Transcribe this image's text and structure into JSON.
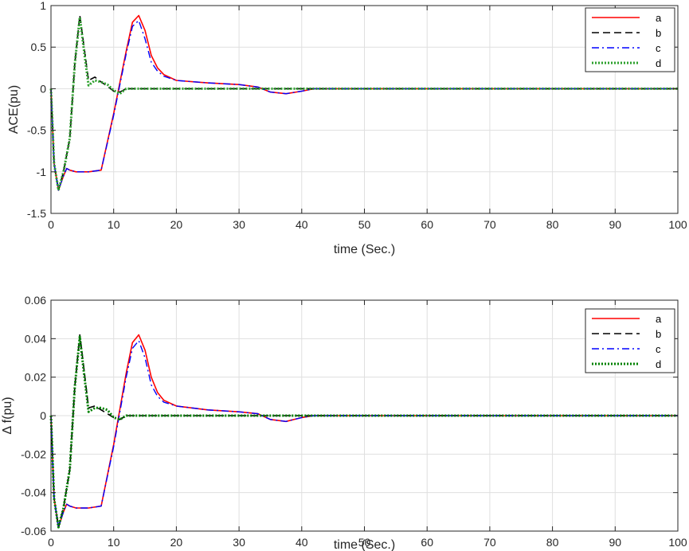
{
  "chart_data": [
    {
      "type": "line",
      "xlabel": "time (Sec.)",
      "ylabel": "ACE(pu)",
      "xlim": [
        0,
        100
      ],
      "ylim": [
        -1.5,
        1
      ],
      "xticks": [
        0,
        10,
        20,
        30,
        40,
        50,
        60,
        70,
        80,
        90,
        100
      ],
      "xtick_labels": [
        "0",
        "10",
        "20",
        "30",
        "40",
        "50",
        "60",
        "70",
        "80",
        "90",
        "100"
      ],
      "yticks": [
        -1.5,
        -1,
        -0.5,
        0,
        0.5,
        1
      ],
      "ytick_labels": [
        "-1.5",
        "-1",
        "-0.5",
        "0",
        "0.5",
        "1"
      ],
      "grid": true,
      "legend_position": "top-right",
      "series": [
        {
          "name": "a",
          "color": "#ff0000",
          "dash": "solid",
          "x": [
            0,
            0.5,
            1.2,
            2,
            2.5,
            3,
            4,
            6,
            8,
            10,
            12,
            13,
            14,
            15,
            16,
            17,
            18,
            20,
            25,
            30,
            33,
            35,
            37.5,
            40,
            42,
            100
          ],
          "y": [
            0,
            -0.9,
            -1.22,
            -1.05,
            -0.96,
            -0.98,
            -1.0,
            -1.0,
            -0.98,
            -0.3,
            0.45,
            0.8,
            0.88,
            0.7,
            0.4,
            0.25,
            0.17,
            0.1,
            0.07,
            0.05,
            0.02,
            -0.04,
            -0.06,
            -0.03,
            0,
            0
          ]
        },
        {
          "name": "b",
          "color": "#000000",
          "dash": "dashed",
          "x": [
            0,
            0.5,
            1.2,
            2,
            3,
            3.8,
            4.6,
            5.2,
            6,
            7,
            8,
            9,
            10,
            11,
            12,
            15,
            100
          ],
          "y": [
            0,
            -0.9,
            -1.22,
            -1.0,
            -0.6,
            0.3,
            0.88,
            0.55,
            0.1,
            0.14,
            0.08,
            0.03,
            -0.03,
            -0.04,
            0,
            0,
            0
          ]
        },
        {
          "name": "c",
          "color": "#0000ff",
          "dash": "dashdot",
          "x": [
            0,
            0.5,
            1.2,
            2,
            2.5,
            3,
            4,
            6,
            8,
            10,
            12,
            13,
            14,
            15,
            16,
            17,
            18,
            20,
            25,
            30,
            33,
            35,
            37.5,
            40,
            42,
            100
          ],
          "y": [
            0,
            -0.9,
            -1.22,
            -1.05,
            -0.96,
            -0.98,
            -1.0,
            -1.0,
            -0.98,
            -0.32,
            0.42,
            0.75,
            0.82,
            0.6,
            0.32,
            0.21,
            0.15,
            0.1,
            0.07,
            0.05,
            0.02,
            -0.04,
            -0.06,
            -0.03,
            0,
            0
          ]
        },
        {
          "name": "d",
          "color": "#2ca02c",
          "dash": "dotted",
          "x": [
            0,
            0.5,
            1.2,
            2,
            3,
            3.8,
            4.6,
            5.2,
            6,
            7,
            8,
            9,
            10,
            11,
            12,
            15,
            100
          ],
          "y": [
            0,
            -0.9,
            -1.22,
            -1.0,
            -0.6,
            0.3,
            0.86,
            0.5,
            0.04,
            0.1,
            0.08,
            0.05,
            -0.02,
            -0.06,
            0,
            0,
            0
          ]
        }
      ]
    },
    {
      "type": "line",
      "xlabel": "time (Sec.)",
      "ylabel": "Δ f(pu)",
      "xlim": [
        0,
        100
      ],
      "ylim": [
        -0.06,
        0.06
      ],
      "xticks": [
        0,
        10,
        20,
        30,
        40,
        50,
        60,
        70,
        80,
        90,
        100
      ],
      "xtick_labels": [
        "0",
        "10",
        "20",
        "30",
        "40",
        "50",
        "60",
        "70",
        "80",
        "90",
        "100"
      ],
      "yticks": [
        -0.06,
        -0.04,
        -0.02,
        0,
        0.02,
        0.04,
        0.06
      ],
      "ytick_labels": [
        "-0.06",
        "-0.04",
        "-0.02",
        "0",
        "0.02",
        "0.04",
        "0.06"
      ],
      "grid": true,
      "legend_position": "top-right",
      "series": [
        {
          "name": "a",
          "color": "#ff0000",
          "dash": "solid",
          "x": [
            0,
            0.5,
            1.2,
            2,
            2.5,
            3,
            4,
            6,
            8,
            10,
            12,
            13,
            14,
            15,
            16,
            17,
            18,
            20,
            25,
            30,
            33,
            35,
            37.5,
            40,
            42,
            100
          ],
          "y": [
            0,
            -0.043,
            -0.058,
            -0.05,
            -0.046,
            -0.047,
            -0.048,
            -0.048,
            -0.047,
            -0.015,
            0.022,
            0.038,
            0.042,
            0.034,
            0.02,
            0.012,
            0.008,
            0.005,
            0.003,
            0.002,
            0.001,
            -0.002,
            -0.003,
            -0.001,
            0,
            0
          ]
        },
        {
          "name": "b",
          "color": "#000000",
          "dash": "dashed",
          "x": [
            0,
            0.5,
            1.2,
            2,
            3,
            3.8,
            4.6,
            5.2,
            6,
            7,
            8,
            9,
            10,
            11,
            12,
            15,
            100
          ],
          "y": [
            0,
            -0.043,
            -0.058,
            -0.048,
            -0.028,
            0.015,
            0.042,
            0.026,
            0.004,
            0.005,
            0.003,
            0.001,
            -0.001,
            -0.002,
            0,
            0,
            0
          ]
        },
        {
          "name": "c",
          "color": "#0000ff",
          "dash": "dashdot",
          "x": [
            0,
            0.5,
            1.2,
            2,
            2.5,
            3,
            4,
            6,
            8,
            10,
            12,
            13,
            14,
            15,
            16,
            17,
            18,
            20,
            25,
            30,
            33,
            35,
            37.5,
            40,
            42,
            100
          ],
          "y": [
            0,
            -0.043,
            -0.058,
            -0.05,
            -0.046,
            -0.047,
            -0.048,
            -0.048,
            -0.047,
            -0.016,
            0.02,
            0.035,
            0.039,
            0.03,
            0.016,
            0.01,
            0.007,
            0.005,
            0.003,
            0.002,
            0.001,
            -0.002,
            -0.003,
            -0.001,
            0,
            0
          ]
        },
        {
          "name": "d",
          "color": "#008000",
          "dash": "dotted",
          "x": [
            0,
            0.5,
            1.2,
            2,
            3,
            3.8,
            4.6,
            5.2,
            6,
            7,
            8,
            9,
            10,
            11,
            12,
            15,
            100
          ],
          "y": [
            0,
            -0.043,
            -0.058,
            -0.048,
            -0.028,
            0.015,
            0.041,
            0.024,
            0.002,
            0.004,
            0.004,
            0.003,
            -0.001,
            -0.002,
            0,
            0,
            0
          ]
        }
      ]
    }
  ]
}
